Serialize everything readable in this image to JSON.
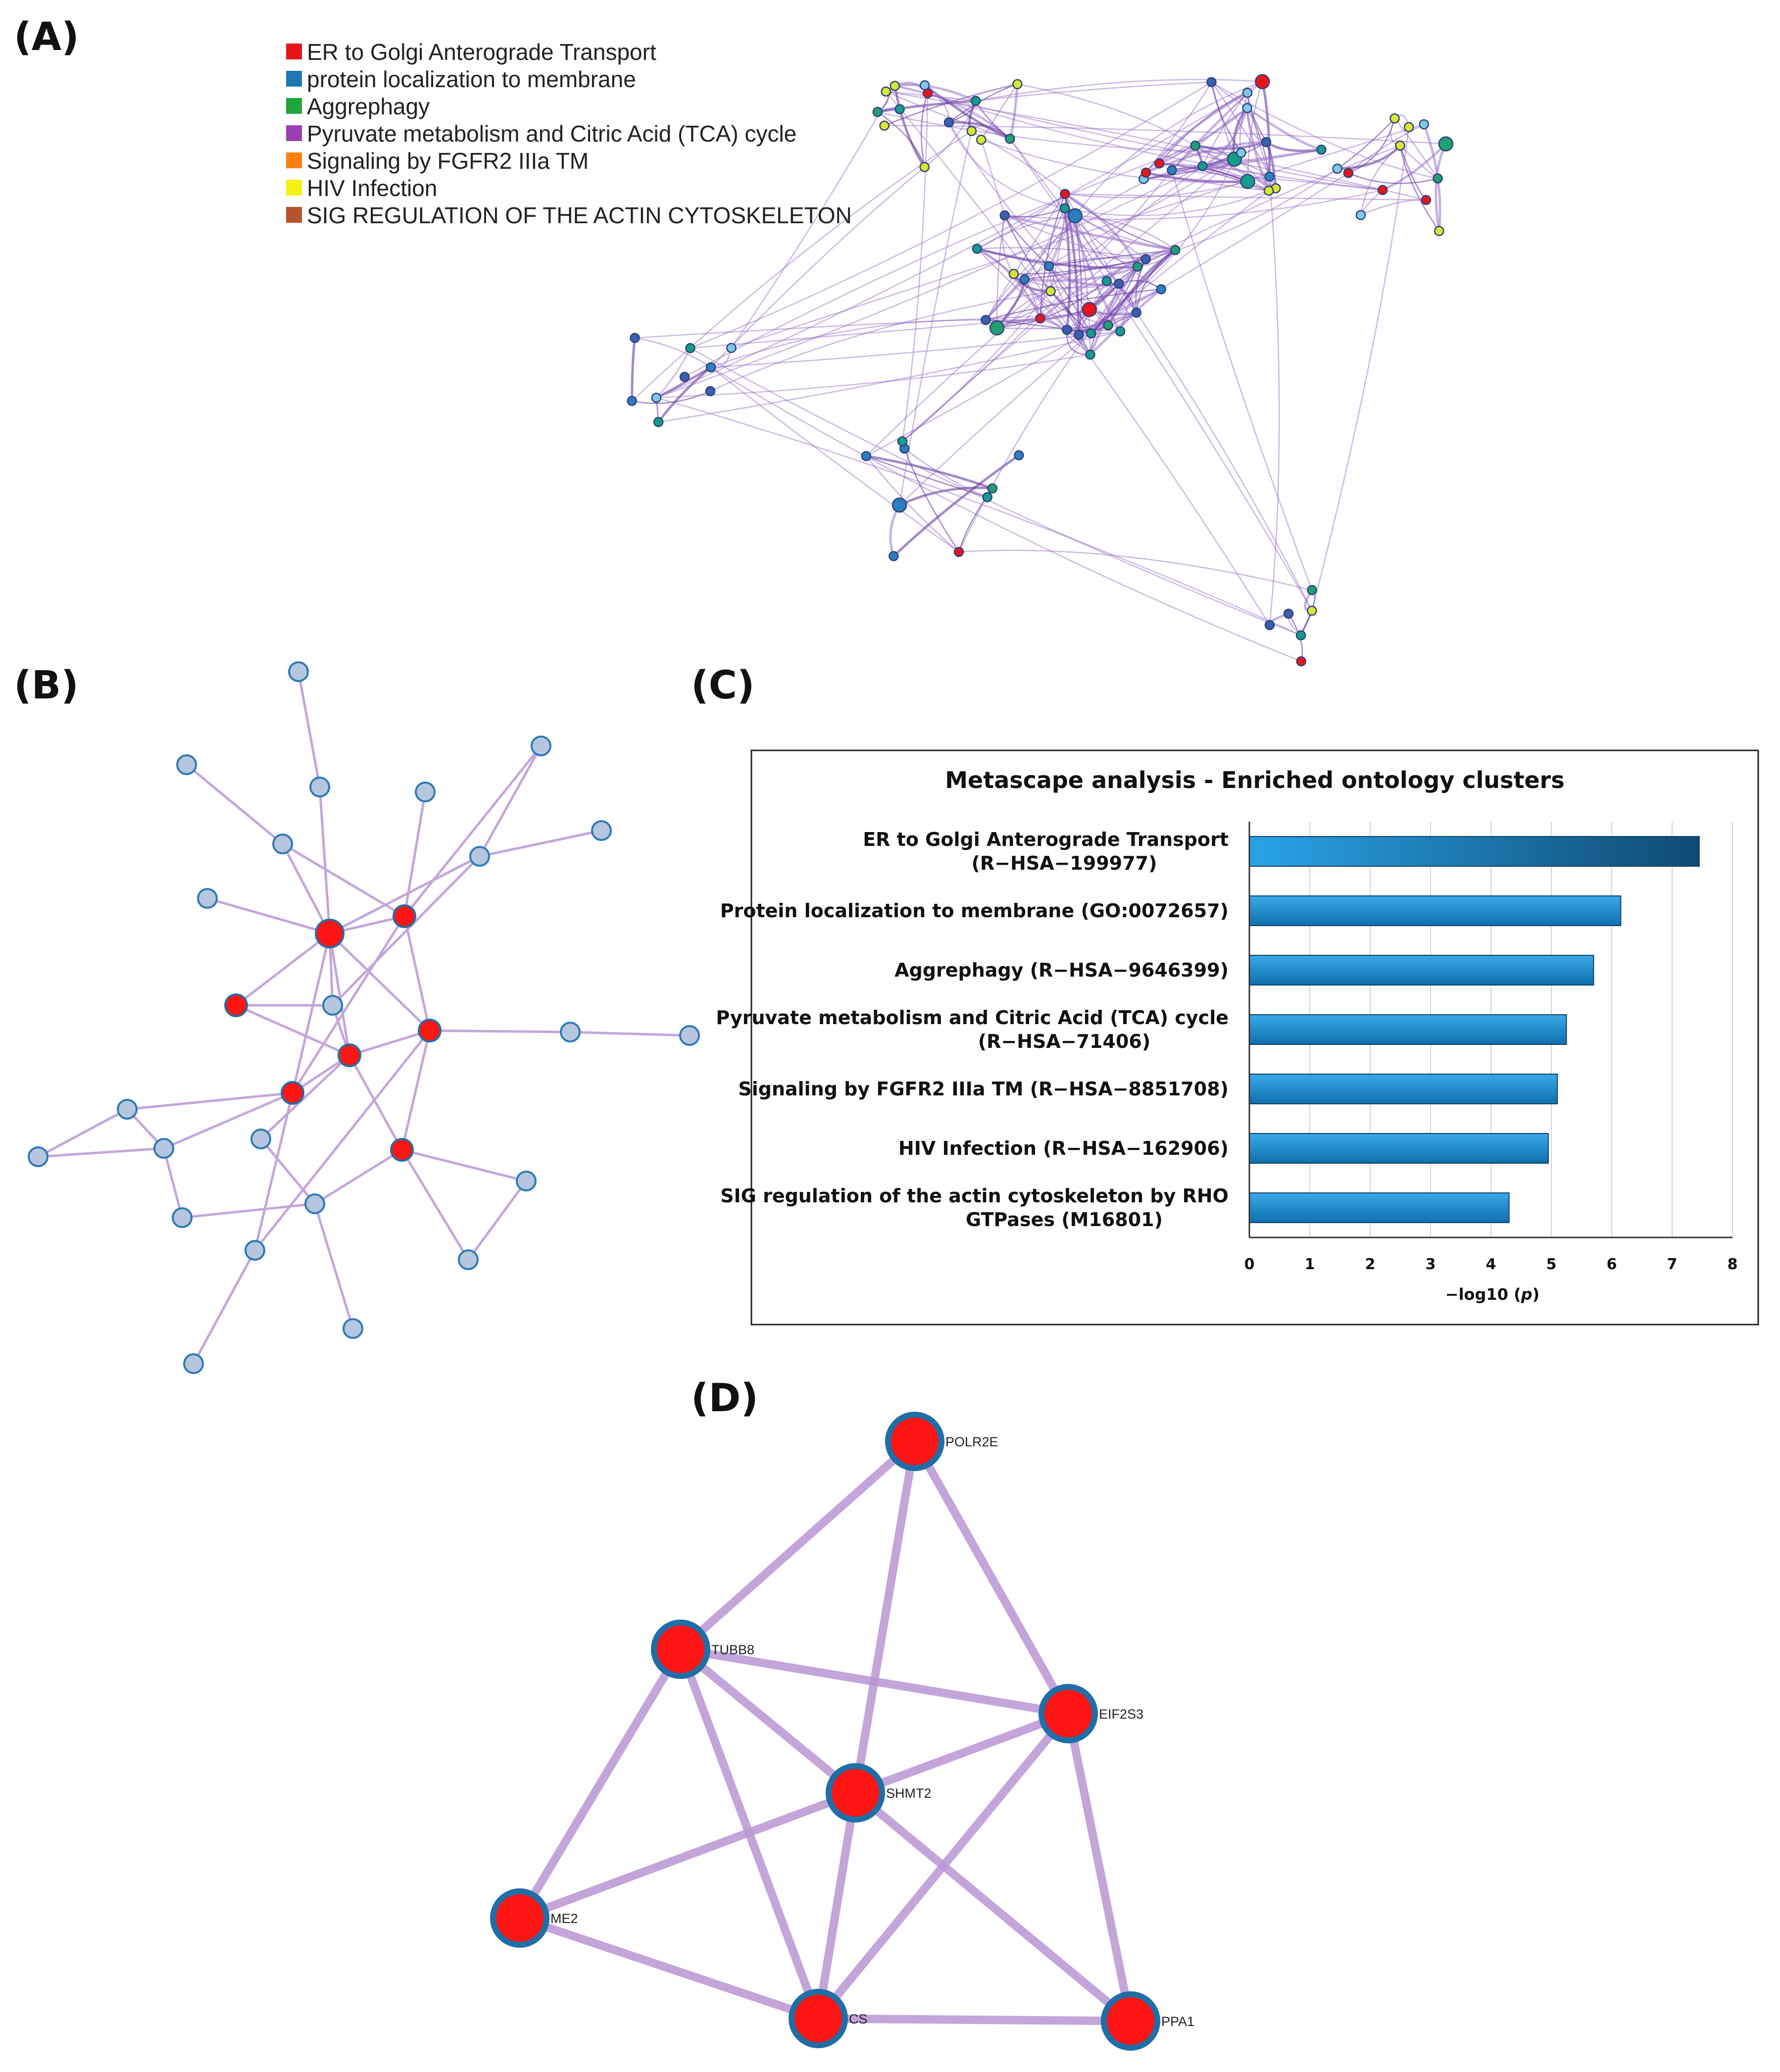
{
  "panels": {
    "a": "(A)",
    "b": "(B)",
    "c": "(C)",
    "d": "(D)"
  },
  "legend": [
    {
      "label": "ER to Golgi Anterograde Transport",
      "color": "#e8141c"
    },
    {
      "label": "protein localization to membrane",
      "color": "#1f77b4"
    },
    {
      "label": "Aggrephagy",
      "color": "#21a63c"
    },
    {
      "label": "Pyruvate metabolism and Citric Acid (TCA) cycle",
      "color": "#9b3fb0"
    },
    {
      "label": "Signaling by FGFR2 IIIa TM",
      "color": "#ff7f0e"
    },
    {
      "label": "HIV Infection",
      "color": "#f5f016"
    },
    {
      "label": "SIG REGULATION OF THE ACTIN CYTOSKELETON",
      "color": "#b5522a"
    }
  ],
  "chart_data": {
    "type": "bar",
    "orientation": "horizontal",
    "title": "Metascape analysis - Enriched ontology clusters",
    "xlabel_prefix": "−log10 (",
    "xlabel_italic": "p",
    "xlabel_suffix": ")",
    "xlim": [
      0,
      8
    ],
    "xticks": [
      "0",
      "1",
      "2",
      "3",
      "4",
      "5",
      "6",
      "7",
      "8"
    ],
    "grid": true,
    "categories": [
      [
        "ER to Golgi Anterograde Transport",
        "(R−HSA−199977)"
      ],
      [
        "Protein localization to membrane (GO:0072657)"
      ],
      [
        "Aggrephagy  (R−HSA−9646399)"
      ],
      [
        "Pyruvate metabolism and Citric Acid (TCA) cycle",
        "(R−HSA−71406)"
      ],
      [
        "Signaling by FGFR2 IIIa TM (R−HSA−8851708)"
      ],
      [
        "HIV Infection (R−HSA−162906)"
      ],
      [
        "SIG regulation of the actin cytoskeleton by RHO",
        "GTPases (M16801)"
      ]
    ],
    "values": [
      7.45,
      6.15,
      5.7,
      5.25,
      5.1,
      4.95,
      4.3
    ],
    "bar_color": "#1a84c7"
  },
  "network_d": {
    "node_color": "#ff1414",
    "edge_color": "#b895d4",
    "nodes": [
      "POLR2E",
      "TUBB8",
      "EIF2S3",
      "SHMT2",
      "ME2",
      "CS",
      "PPA1"
    ],
    "edges": [
      [
        "POLR2E",
        "TUBB8"
      ],
      [
        "POLR2E",
        "EIF2S3"
      ],
      [
        "POLR2E",
        "SHMT2"
      ],
      [
        "TUBB8",
        "EIF2S3"
      ],
      [
        "TUBB8",
        "SHMT2"
      ],
      [
        "TUBB8",
        "ME2"
      ],
      [
        "TUBB8",
        "CS"
      ],
      [
        "EIF2S3",
        "SHMT2"
      ],
      [
        "EIF2S3",
        "CS"
      ],
      [
        "EIF2S3",
        "PPA1"
      ],
      [
        "SHMT2",
        "ME2"
      ],
      [
        "SHMT2",
        "CS"
      ],
      [
        "SHMT2",
        "PPA1"
      ],
      [
        "ME2",
        "CS"
      ],
      [
        "CS",
        "PPA1"
      ]
    ]
  }
}
